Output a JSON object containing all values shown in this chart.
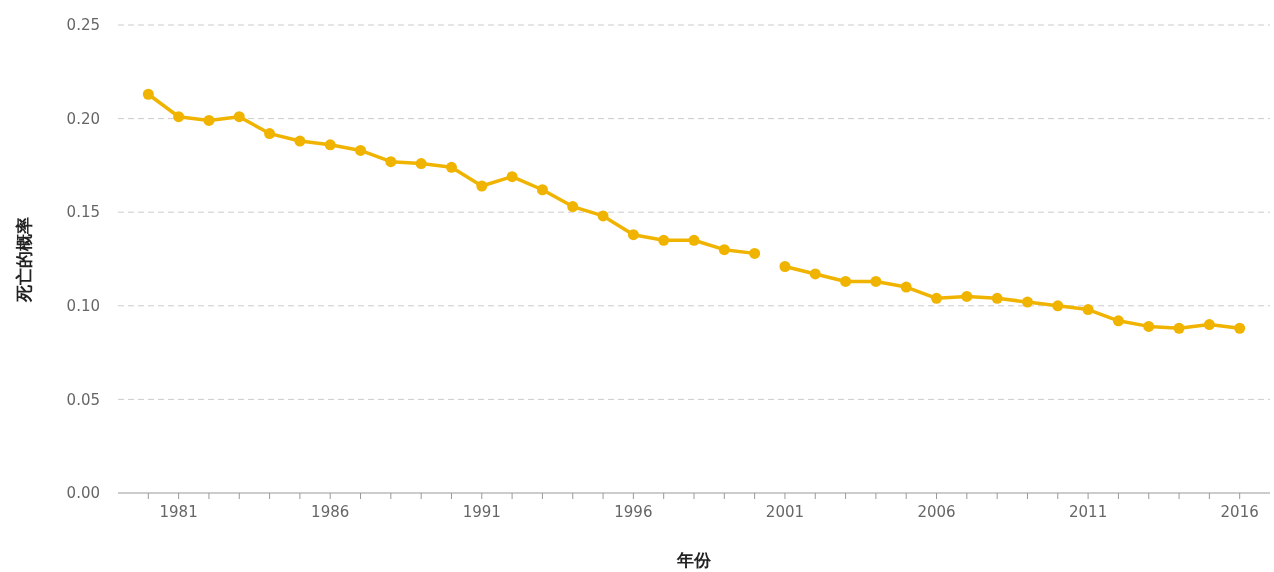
{
  "chart_data": {
    "type": "line",
    "xlabel": "年份",
    "ylabel": "死亡的概率",
    "xlim": [
      1979,
      2017
    ],
    "xticks": [
      {
        "value": 1980,
        "label": null
      },
      1981,
      {
        "value": 1982,
        "label": null
      },
      {
        "value": 1983,
        "label": null
      },
      {
        "value": 1984,
        "label": null
      },
      {
        "value": 1985,
        "label": null
      },
      1986,
      {
        "value": 1987,
        "label": null
      },
      {
        "value": 1988,
        "label": null
      },
      {
        "value": 1989,
        "label": null
      },
      {
        "value": 1990,
        "label": null
      },
      1991,
      {
        "value": 1992,
        "label": null
      },
      {
        "value": 1993,
        "label": null
      },
      {
        "value": 1994,
        "label": null
      },
      {
        "value": 1995,
        "label": null
      },
      1996,
      {
        "value": 1997,
        "label": null
      },
      {
        "value": 1998,
        "label": null
      },
      {
        "value": 1999,
        "label": null
      },
      {
        "value": 2000,
        "label": null
      },
      2001,
      {
        "value": 2002,
        "label": null
      },
      {
        "value": 2003,
        "label": null
      },
      {
        "value": 2004,
        "label": null
      },
      {
        "value": 2005,
        "label": null
      },
      2006,
      {
        "value": 2007,
        "label": null
      },
      {
        "value": 2008,
        "label": null
      },
      {
        "value": 2009,
        "label": null
      },
      {
        "value": 2010,
        "label": null
      },
      2011,
      {
        "value": 2012,
        "label": null
      },
      {
        "value": 2013,
        "label": null
      },
      {
        "value": 2014,
        "label": null
      },
      {
        "value": 2015,
        "label": null
      },
      2016
    ],
    "ylim": [
      0,
      0.25
    ],
    "yticks": [
      {
        "value": 0,
        "label": "0.00"
      },
      {
        "value": 0.05,
        "label": "0.05"
      },
      {
        "value": 0.1,
        "label": "0.10"
      },
      {
        "value": 0.15,
        "label": "0.15"
      },
      {
        "value": 0.2,
        "label": "0.20"
      },
      {
        "value": 0.25,
        "label": "0.25"
      }
    ],
    "grid": "y",
    "marker": "circle",
    "line_style": "solid",
    "series": [
      {
        "color": "#f0b400",
        "x": [
          1980,
          1981,
          1982,
          1983,
          1984,
          1985,
          1986,
          1987,
          1988,
          1989,
          1990,
          1991,
          1992,
          1993,
          1994,
          1995,
          1996,
          1997,
          1998,
          1999,
          2000
        ],
        "values": [
          0.213,
          0.201,
          0.199,
          0.201,
          0.192,
          0.188,
          0.186,
          0.183,
          0.177,
          0.176,
          0.174,
          0.164,
          0.169,
          0.162,
          0.153,
          0.148,
          0.138,
          0.135,
          0.135,
          0.13,
          0.128
        ]
      },
      {
        "color": "#f0b400",
        "x": [
          2001,
          2002,
          2003,
          2004,
          2005,
          2006,
          2007,
          2008,
          2009,
          2010,
          2011,
          2012,
          2013,
          2014,
          2015,
          2016
        ],
        "values": [
          0.121,
          0.117,
          0.113,
          0.113,
          0.11,
          0.104,
          0.105,
          0.104,
          0.102,
          0.1,
          0.098,
          0.092,
          0.089,
          0.088,
          0.09,
          0.088
        ]
      }
    ]
  }
}
